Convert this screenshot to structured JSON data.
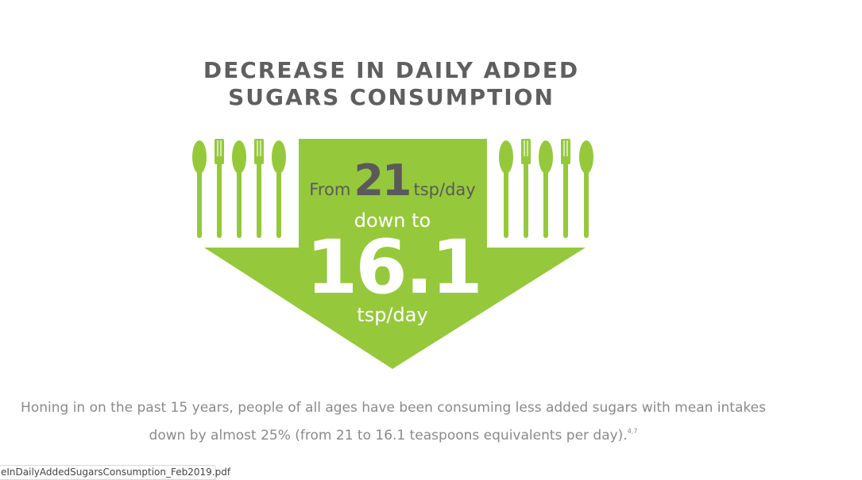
{
  "title": {
    "line1": "DECREASE IN DAILY ADDED",
    "line2": "SUGARS CONSUMPTION"
  },
  "infographic": {
    "from_label": "From",
    "from_value": "21",
    "from_unit": "tsp/day",
    "down_to_label": "down to",
    "to_value": "16.1",
    "to_unit": "tsp/day",
    "icons": [
      "spoon-icon",
      "fork-icon"
    ]
  },
  "description": {
    "line1": "Honing in on the past 15 years, people of all ages have been consuming less added sugars with mean intakes",
    "line2": "down by almost 25% (from 21 to 16.1 teaspoons equivalents per day).",
    "footnote": "4,7"
  },
  "download_bar": {
    "filename": "eInDailyAddedSugarsConsumption_Feb2019.pdf"
  },
  "colors": {
    "accent_green": "#96c83c",
    "title_gray": "#5f5f5f",
    "body_gray": "#8a8a8a"
  }
}
